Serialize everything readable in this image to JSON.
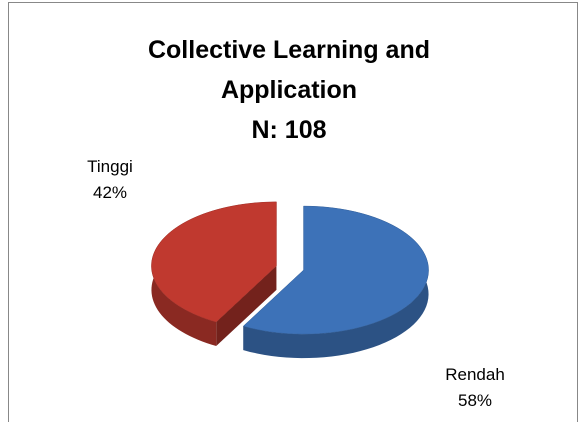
{
  "chart_data": {
    "type": "pie",
    "title": "Collective Learning and Application",
    "subtitle": "N: 108",
    "categories": [
      "Rendah",
      "Tinggi"
    ],
    "values": [
      58,
      42
    ],
    "value_labels": [
      "58%",
      "42%"
    ],
    "colors": [
      "#3d72b8",
      "#c0392f"
    ]
  }
}
